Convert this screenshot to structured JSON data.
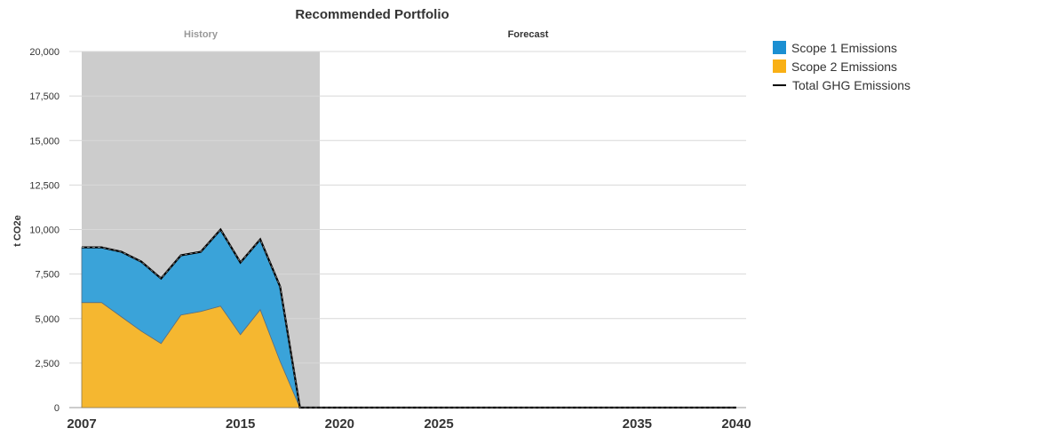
{
  "chart_data": {
    "type": "area",
    "title": "Recommended Portfolio",
    "ylabel": "t CO2e",
    "xlabel": "",
    "xlim": [
      2007,
      2040
    ],
    "ylim": [
      0,
      20000
    ],
    "y_ticks": [
      0,
      2500,
      5000,
      7500,
      10000,
      12500,
      15000,
      17500,
      20000
    ],
    "y_tick_labels": [
      "0",
      "2,500",
      "5,000",
      "7,500",
      "10,000",
      "12,500",
      "15,000",
      "17,500",
      "20,000"
    ],
    "x_tick_labels": [
      "2007",
      "2015",
      "2020",
      "2025",
      "2035",
      "2040"
    ],
    "x_ticks": [
      2007,
      2015,
      2020,
      2025,
      2035,
      2040
    ],
    "bands": [
      {
        "label": "History",
        "from": 2007,
        "to": 2019,
        "color": "#cccccc"
      },
      {
        "label": "Forecast",
        "from": 2019,
        "to": 2040,
        "color": "#ffffff"
      }
    ],
    "x": [
      2007,
      2008,
      2009,
      2010,
      2011,
      2012,
      2013,
      2014,
      2015,
      2016,
      2017,
      2018,
      2019,
      2020,
      2021,
      2022,
      2023,
      2024,
      2025,
      2026,
      2027,
      2028,
      2029,
      2030,
      2031,
      2032,
      2033,
      2034,
      2035,
      2036,
      2037,
      2038,
      2039,
      2040
    ],
    "series": [
      {
        "name": "Scope 2 Emissions",
        "color": "#f5b730",
        "values": [
          5900,
          5900,
          5100,
          4300,
          3600,
          5200,
          5400,
          5700,
          4100,
          5500,
          2600,
          0,
          0,
          0,
          0,
          0,
          0,
          0,
          0,
          0,
          0,
          0,
          0,
          0,
          0,
          0,
          0,
          0,
          0,
          0,
          0,
          0,
          0,
          0
        ]
      },
      {
        "name": "Scope 1 Emissions",
        "color": "#3aa3d9",
        "values": [
          3100,
          3100,
          3650,
          3900,
          3650,
          3350,
          3350,
          4300,
          4050,
          3950,
          4200,
          0,
          0,
          0,
          0,
          0,
          0,
          0,
          0,
          0,
          0,
          0,
          0,
          0,
          0,
          0,
          0,
          0,
          0,
          0,
          0,
          0,
          0,
          0
        ]
      },
      {
        "name": "Total GHG Emissions",
        "color": "#000000",
        "kind": "line",
        "values": [
          9000,
          9000,
          8750,
          8200,
          7250,
          8550,
          8750,
          10000,
          8150,
          9450,
          6800,
          0,
          0,
          0,
          0,
          0,
          0,
          0,
          0,
          0,
          0,
          0,
          0,
          0,
          0,
          0,
          0,
          0,
          0,
          0,
          0,
          0,
          0,
          0
        ]
      }
    ],
    "legend": {
      "placement": "top-right",
      "items": [
        "Scope 1 Emissions",
        "Scope 2 Emissions",
        "Total GHG Emissions"
      ]
    },
    "grid": true
  }
}
